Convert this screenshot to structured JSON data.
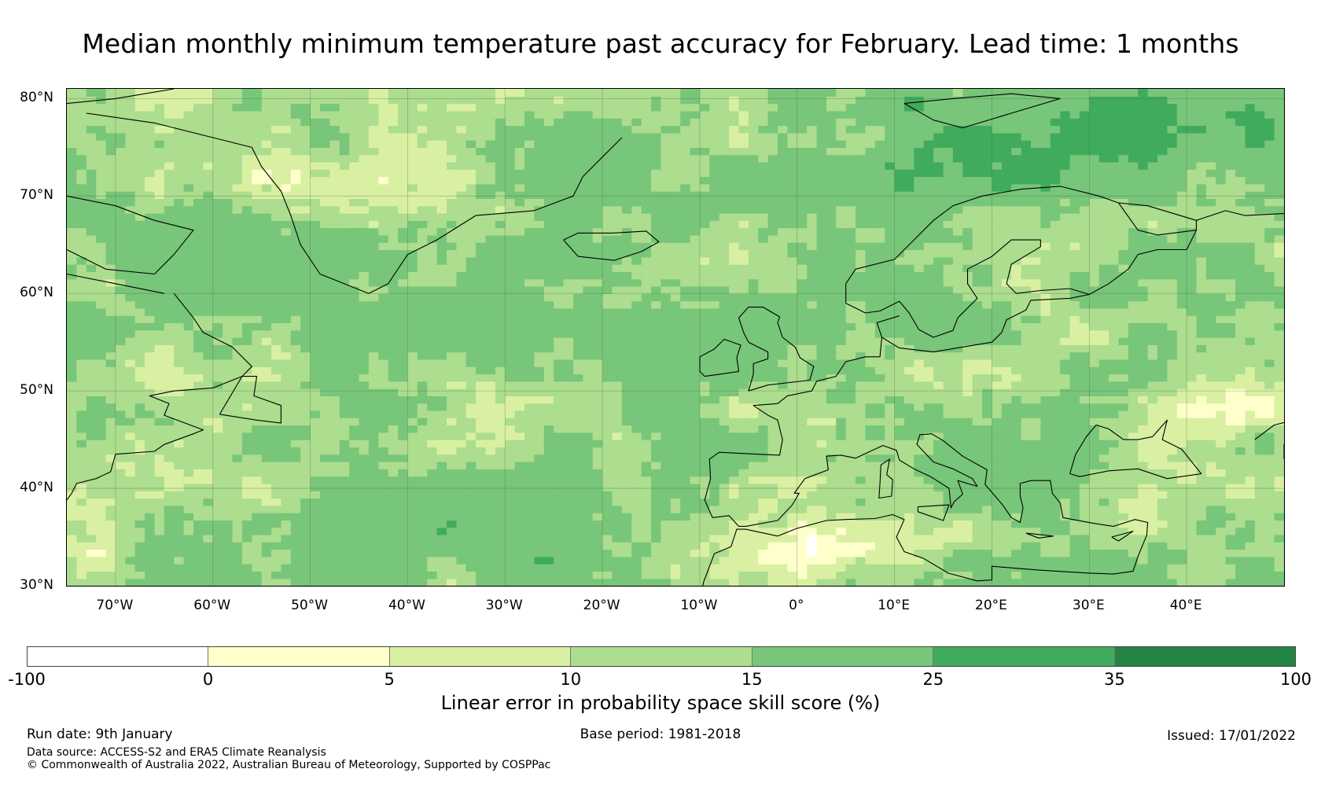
{
  "title": "Median monthly minimum temperature past accuracy for February. Lead time: 1 months",
  "map": {
    "extent": {
      "lon_min": -75,
      "lon_max": 50,
      "lat_min": 30,
      "lat_max": 81
    },
    "lat_ticks": [
      {
        "value": 80,
        "label": "80°N"
      },
      {
        "value": 70,
        "label": "70°N"
      },
      {
        "value": 60,
        "label": "60°N"
      },
      {
        "value": 50,
        "label": "50°N"
      },
      {
        "value": 40,
        "label": "40°N"
      },
      {
        "value": 30,
        "label": "30°N"
      }
    ],
    "lon_ticks": [
      {
        "value": -70,
        "label": "70°W"
      },
      {
        "value": -60,
        "label": "60°W"
      },
      {
        "value": -50,
        "label": "50°W"
      },
      {
        "value": -40,
        "label": "40°W"
      },
      {
        "value": -30,
        "label": "30°W"
      },
      {
        "value": -20,
        "label": "20°W"
      },
      {
        "value": -10,
        "label": "10°W"
      },
      {
        "value": 0,
        "label": "0°"
      },
      {
        "value": 10,
        "label": "10°E"
      },
      {
        "value": 20,
        "label": "20°E"
      },
      {
        "value": 30,
        "label": "30°E"
      },
      {
        "value": 40,
        "label": "40°E"
      }
    ]
  },
  "colorbar": {
    "colors": [
      "#ffffff",
      "#ffffcc",
      "#d9f0a3",
      "#addd8e",
      "#78c679",
      "#41ab5d",
      "#238443"
    ],
    "ticks": [
      "-100",
      "0",
      "5",
      "10",
      "15",
      "25",
      "35",
      "100"
    ],
    "label": "Linear error in probability space skill score (%)"
  },
  "footer": {
    "run_date": "Run date: 9th January",
    "base_period": "Base period: 1981-2018",
    "issued": "Issued: 17/01/2022",
    "data_source": "Data source: ACCESS-S2 and ERA5 Climate Reanalysis",
    "copyright": "© Commonwealth of Australia 2022, Australian Bureau of Meteorology, Supported by COSPPac"
  }
}
